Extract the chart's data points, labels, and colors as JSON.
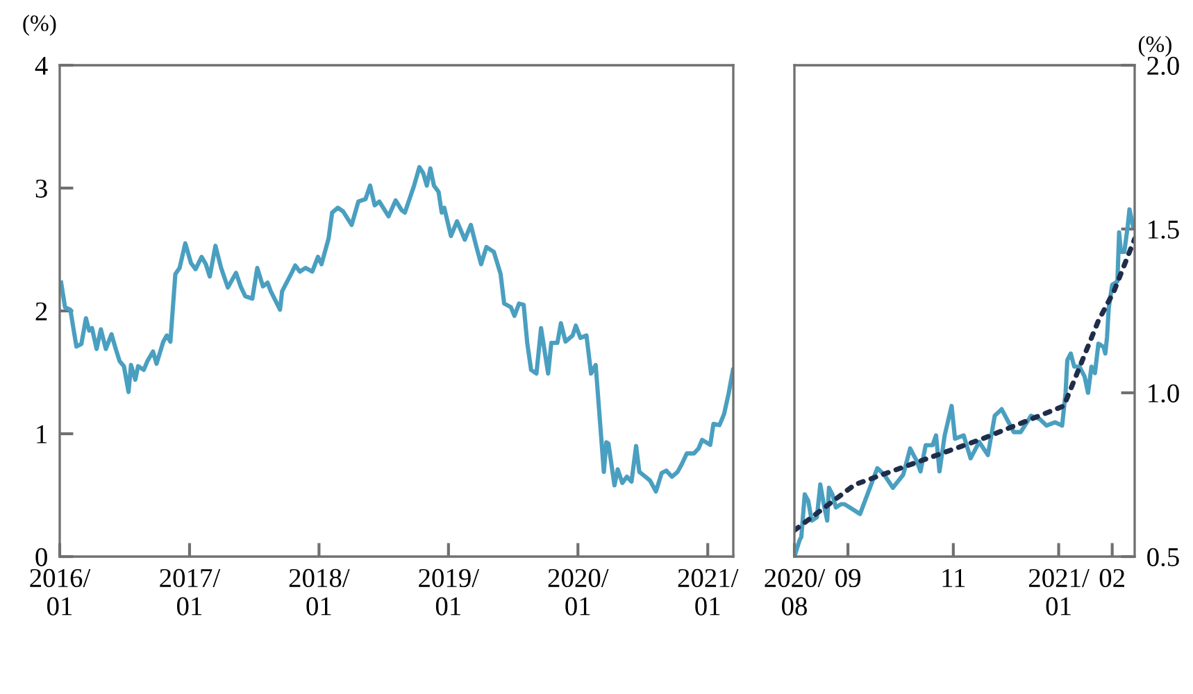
{
  "chart_data": [
    {
      "type": "line",
      "ylabel": "(%)",
      "xlim": [
        "2016-01-01",
        "2021-03-14"
      ],
      "ylim": [
        0,
        4
      ],
      "yticks": [
        0,
        1,
        2,
        3,
        4
      ],
      "xticks": [
        {
          "value": "2016-01-01",
          "label": "2016/\n01"
        },
        {
          "value": "2017-01-01",
          "label": "2017/\n01"
        },
        {
          "value": "2018-01-01",
          "label": "2018/\n01"
        },
        {
          "value": "2019-01-01",
          "label": "2019/\n01"
        },
        {
          "value": "2020-01-01",
          "label": "2020/\n01"
        },
        {
          "value": "2021-01-01",
          "label": "2021/\n01"
        }
      ],
      "grid": false,
      "series": [
        {
          "color": "#4a9fc0",
          "line_style": "solid",
          "x": [
            "2016-01-05",
            "2016-01-16",
            "2016-01-31",
            "2016-02-17",
            "2016-03-02",
            "2016-03-15",
            "2016-03-24",
            "2016-04-01",
            "2016-04-14",
            "2016-04-26",
            "2016-05-10",
            "2016-05-26",
            "2016-06-07",
            "2016-06-18",
            "2016-06-30",
            "2016-07-13",
            "2016-07-20",
            "2016-08-01",
            "2016-08-09",
            "2016-08-25",
            "2016-09-04",
            "2016-09-20",
            "2016-09-30",
            "2016-10-19",
            "2016-10-29",
            "2016-11-08",
            "2016-11-22",
            "2016-12-04",
            "2016-12-20",
            "2017-01-05",
            "2017-01-18",
            "2017-02-04",
            "2017-02-16",
            "2017-02-27",
            "2017-03-15",
            "2017-03-31",
            "2017-04-19",
            "2017-05-12",
            "2017-05-25",
            "2017-06-07",
            "2017-06-27",
            "2017-07-11",
            "2017-07-27",
            "2017-08-09",
            "2017-08-18",
            "2017-09-13",
            "2017-09-19",
            "2017-10-16",
            "2017-10-26",
            "2017-11-08",
            "2017-11-24",
            "2017-12-13",
            "2017-12-29",
            "2018-01-08",
            "2018-01-28",
            "2018-02-07",
            "2018-02-23",
            "2018-03-10",
            "2018-04-03",
            "2018-04-22",
            "2018-05-12",
            "2018-05-25",
            "2018-06-07",
            "2018-06-20",
            "2018-07-16",
            "2018-08-05",
            "2018-08-22",
            "2018-08-31",
            "2018-09-26",
            "2018-10-11",
            "2018-10-22",
            "2018-11-01",
            "2018-11-11",
            "2018-11-21",
            "2018-12-04",
            "2018-12-13",
            "2018-12-20",
            "2019-01-08",
            "2019-01-25",
            "2019-02-16",
            "2019-03-05",
            "2019-03-20",
            "2019-04-03",
            "2019-04-18",
            "2019-05-09",
            "2019-05-28",
            "2019-06-07",
            "2019-06-26",
            "2019-07-06",
            "2019-07-19",
            "2019-08-01",
            "2019-08-11",
            "2019-08-22",
            "2019-09-06",
            "2019-09-19",
            "2019-10-09",
            "2019-10-18",
            "2019-11-04",
            "2019-11-14",
            "2019-11-27",
            "2019-12-17",
            "2019-12-26",
            "2020-01-08",
            "2020-01-25",
            "2020-02-07",
            "2020-02-20",
            "2020-03-14",
            "2020-03-21",
            "2020-03-27",
            "2020-04-13",
            "2020-04-22",
            "2020-05-05",
            "2020-05-18",
            "2020-05-31",
            "2020-06-13",
            "2020-06-22",
            "2020-07-09",
            "2020-07-22",
            "2020-08-08",
            "2020-08-24",
            "2020-09-06",
            "2020-09-22",
            "2020-10-08",
            "2020-10-21",
            "2020-11-03",
            "2020-11-23",
            "2020-12-06",
            "2020-12-16",
            "2021-01-08",
            "2021-01-17",
            "2021-02-03",
            "2021-02-16",
            "2021-03-01",
            "2021-03-13"
          ],
          "values": [
            2.23,
            2.03,
            2.01,
            1.71,
            1.73,
            1.94,
            1.84,
            1.86,
            1.69,
            1.85,
            1.69,
            1.81,
            1.69,
            1.59,
            1.55,
            1.34,
            1.56,
            1.44,
            1.55,
            1.52,
            1.59,
            1.67,
            1.57,
            1.75,
            1.8,
            1.75,
            2.3,
            2.35,
            2.55,
            2.39,
            2.34,
            2.44,
            2.38,
            2.28,
            2.53,
            2.35,
            2.19,
            2.31,
            2.2,
            2.12,
            2.1,
            2.35,
            2.2,
            2.23,
            2.16,
            2.01,
            2.16,
            2.31,
            2.37,
            2.32,
            2.35,
            2.32,
            2.44,
            2.38,
            2.59,
            2.8,
            2.84,
            2.81,
            2.7,
            2.89,
            2.91,
            3.02,
            2.86,
            2.89,
            2.77,
            2.9,
            2.82,
            2.8,
            3.02,
            3.17,
            3.12,
            3.02,
            3.16,
            3.02,
            2.97,
            2.8,
            2.84,
            2.61,
            2.73,
            2.58,
            2.7,
            2.53,
            2.38,
            2.52,
            2.48,
            2.3,
            2.06,
            2.03,
            1.96,
            2.06,
            2.05,
            1.74,
            1.52,
            1.49,
            1.86,
            1.49,
            1.74,
            1.74,
            1.9,
            1.75,
            1.8,
            1.88,
            1.78,
            1.8,
            1.49,
            1.56,
            0.69,
            0.93,
            0.92,
            0.58,
            0.71,
            0.6,
            0.65,
            0.61,
            0.9,
            0.69,
            0.65,
            0.62,
            0.53,
            0.68,
            0.7,
            0.65,
            0.69,
            0.76,
            0.84,
            0.84,
            0.88,
            0.95,
            0.91,
            1.08,
            1.07,
            1.16,
            1.33,
            1.52
          ]
        }
      ]
    },
    {
      "type": "line",
      "ylabel": "(%)",
      "xlim": [
        "2020-08-01",
        "2021-02-14"
      ],
      "ylim": [
        0.5,
        2.0
      ],
      "yticks": [
        0.5,
        {
          "value": 1.0,
          "label": "1.0"
        },
        1.5,
        {
          "value": 2.0,
          "label": "2.0"
        }
      ],
      "xticks": [
        {
          "value": "2020-08-01",
          "label": "2020/\n08"
        },
        {
          "value": "2020-09-01",
          "label": "09"
        },
        {
          "value": "2020-11-01",
          "label": "11"
        },
        {
          "value": "2021-01-01",
          "label": "2021/\n01"
        },
        {
          "value": "2021-02-01",
          "label": "02"
        }
      ],
      "grid": false,
      "series": [
        {
          "color": "#4a9fc0",
          "line_style": "solid",
          "x": [
            "2020-08-01",
            "2020-08-04",
            "2020-08-05",
            "2020-08-07",
            "2020-08-09",
            "2020-08-11",
            "2020-08-14",
            "2020-08-16",
            "2020-08-18",
            "2020-08-20",
            "2020-08-21",
            "2020-08-23",
            "2020-08-25",
            "2020-08-28",
            "2020-08-30",
            "2020-09-02",
            "2020-09-08",
            "2020-09-13",
            "2020-09-18",
            "2020-09-22",
            "2020-09-27",
            "2020-10-03",
            "2020-10-07",
            "2020-10-11",
            "2020-10-13",
            "2020-10-16",
            "2020-10-20",
            "2020-10-22",
            "2020-10-24",
            "2020-10-27",
            "2020-10-31",
            "2020-11-02",
            "2020-11-07",
            "2020-11-11",
            "2020-11-16",
            "2020-11-21",
            "2020-11-25",
            "2020-11-29",
            "2020-12-03",
            "2020-12-06",
            "2020-12-10",
            "2020-12-16",
            "2020-12-21",
            "2020-12-25",
            "2020-12-30",
            "2021-01-03",
            "2021-01-05",
            "2021-01-06",
            "2021-01-08",
            "2021-01-10",
            "2021-01-12",
            "2021-01-13",
            "2021-01-16",
            "2021-01-18",
            "2021-01-20",
            "2021-01-22",
            "2021-01-24",
            "2021-01-27",
            "2021-01-28",
            "2021-01-29",
            "2021-01-30",
            "2021-02-01",
            "2021-02-04",
            "2021-02-05",
            "2021-02-06",
            "2021-02-08",
            "2021-02-10",
            "2021-02-11",
            "2021-02-13"
          ],
          "values": [
            0.5,
            0.55,
            0.56,
            0.69,
            0.67,
            0.61,
            0.62,
            0.72,
            0.66,
            0.61,
            0.71,
            0.69,
            0.65,
            0.66,
            0.66,
            0.65,
            0.63,
            0.7,
            0.77,
            0.75,
            0.71,
            0.75,
            0.83,
            0.79,
            0.76,
            0.84,
            0.84,
            0.87,
            0.76,
            0.87,
            0.96,
            0.86,
            0.87,
            0.8,
            0.85,
            0.81,
            0.93,
            0.95,
            0.91,
            0.88,
            0.88,
            0.93,
            0.92,
            0.9,
            0.91,
            0.9,
            1.0,
            1.1,
            1.12,
            1.08,
            1.08,
            1.08,
            1.05,
            1.0,
            1.08,
            1.06,
            1.15,
            1.14,
            1.12,
            1.17,
            1.26,
            1.33,
            1.34,
            1.49,
            1.43,
            1.43,
            1.51,
            1.56,
            1.51
          ]
        },
        {
          "color": "#1f2d4a",
          "line_style": "dotted",
          "x": [
            "2020-08-01",
            "2020-09-05",
            "2020-11-18",
            "2021-01-04",
            "2021-01-24",
            "2021-02-02",
            "2021-02-14"
          ],
          "values": [
            0.58,
            0.72,
            0.86,
            0.96,
            1.22,
            1.31,
            1.47
          ]
        }
      ]
    }
  ]
}
